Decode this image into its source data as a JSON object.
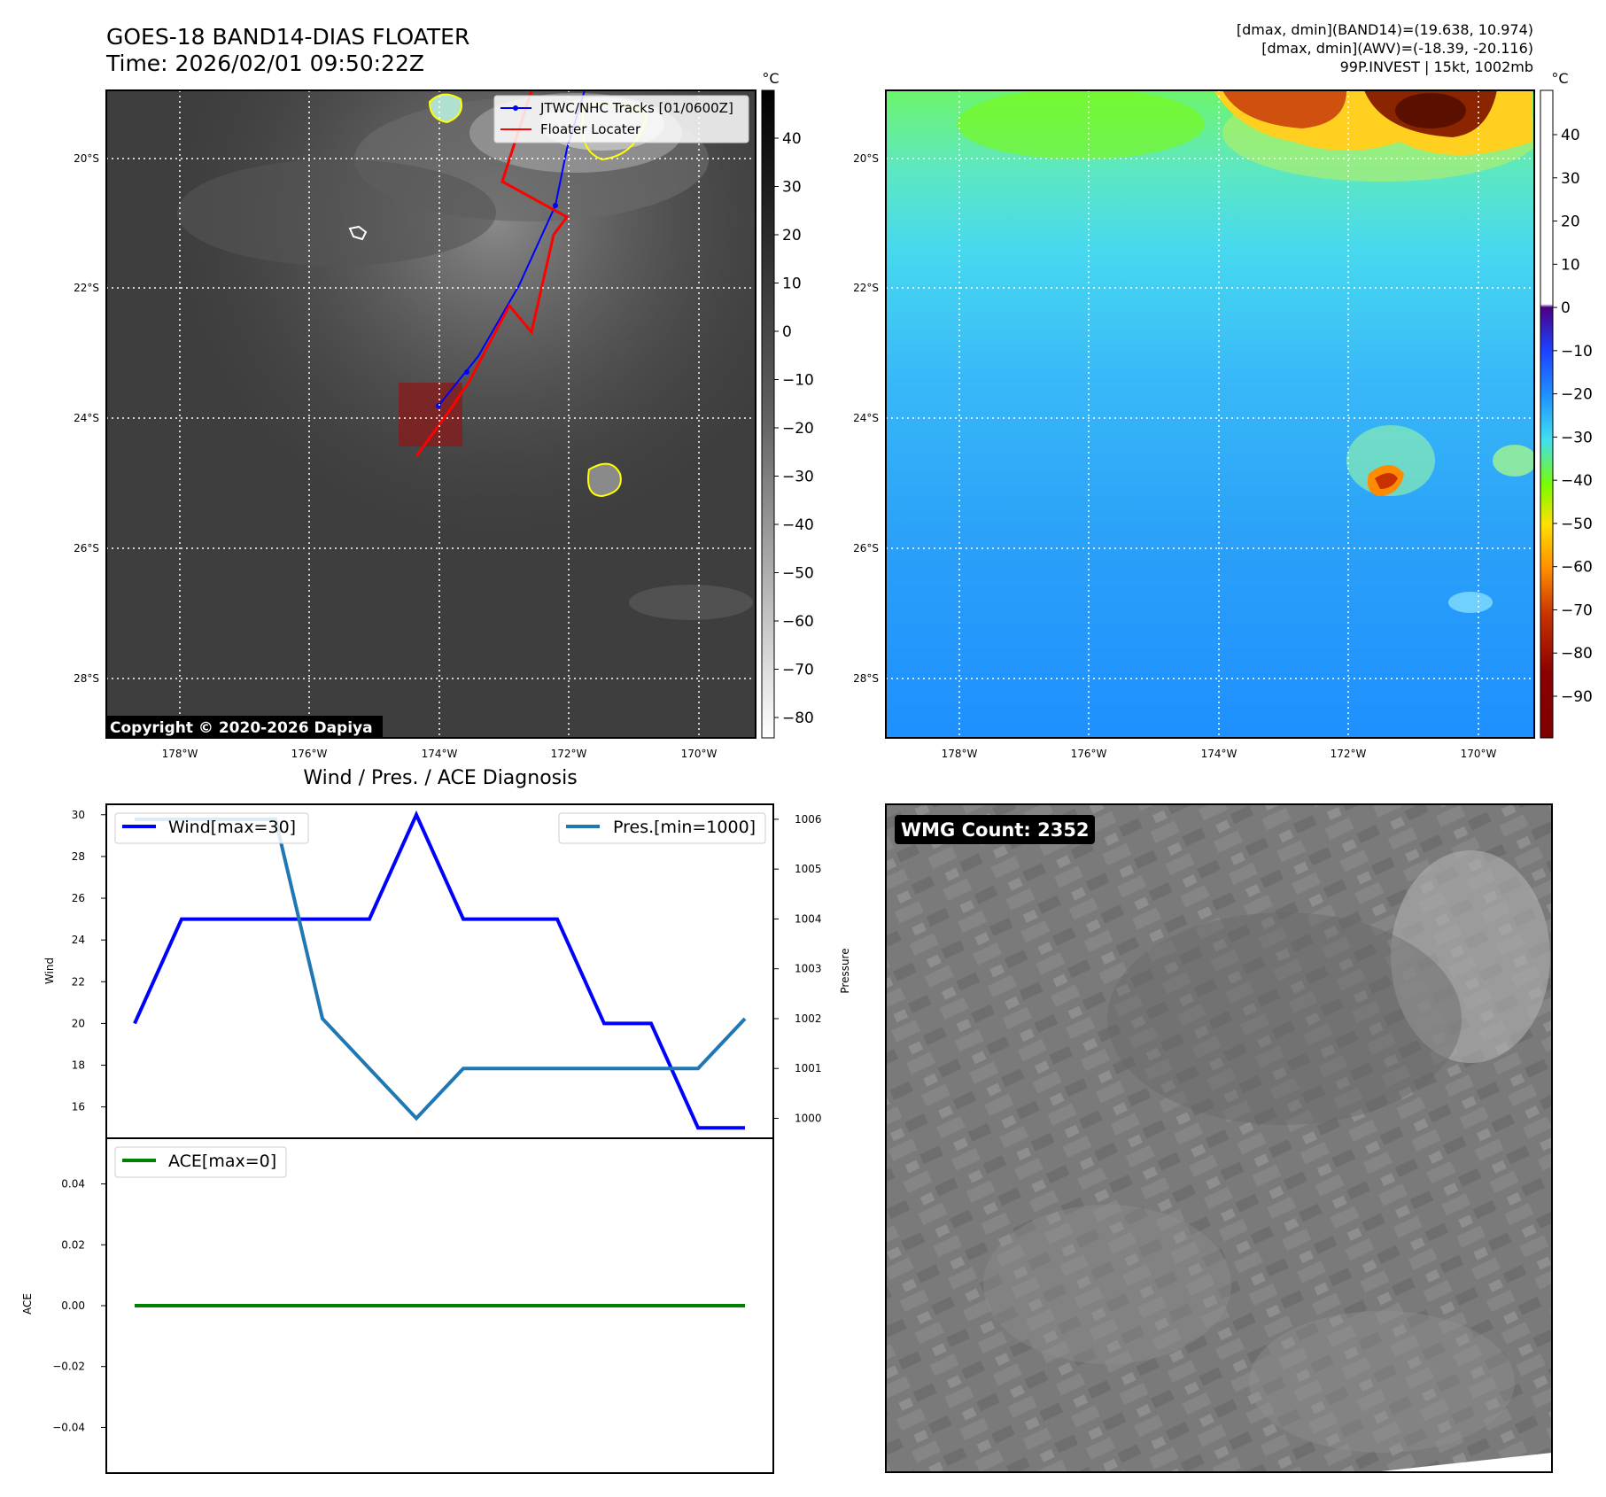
{
  "header": {
    "title_line1": "GOES-18 BAND14-DIAS FLOATER",
    "title_line2": "Time: 2026/02/01 09:50:22Z",
    "info_line1": "[dmax, dmin](BAND14)=(19.638, 10.974)",
    "info_line2": "[dmax, dmin](AWV)=(-18.39, -20.116)",
    "info_line3": "99P.INVEST | 15kt, 1002mb"
  },
  "maps": {
    "lat_labels": [
      "20°S",
      "22°S",
      "24°S",
      "26°S",
      "28°S"
    ],
    "lon_labels": [
      "178°W",
      "176°W",
      "174°W",
      "172°W",
      "170°W"
    ],
    "copyright": "Copyright © 2020-2026 Dapiya",
    "legend_tracks": "JTWC/NHC Tracks [01/0600Z]",
    "legend_floater": "Floater Locater",
    "ir_colorbar": {
      "unit": "°C",
      "ticks": [
        "40",
        "30",
        "20",
        "10",
        "0",
        "−10",
        "−20",
        "−30",
        "−40",
        "−50",
        "−60",
        "−70",
        "−80"
      ]
    },
    "wv_colorbar": {
      "unit": "°C",
      "ticks": [
        "40",
        "30",
        "20",
        "10",
        "0",
        "−10",
        "−20",
        "−30",
        "−40",
        "−50",
        "−60",
        "−70",
        "−80",
        "−90"
      ]
    },
    "colors": {
      "track": "#0000ff",
      "floater": "#ff0000",
      "floater_box": "#8b1a1a",
      "coast": "#ffffff",
      "wv_moist": "#1e90ff",
      "wv_dry_cyan": "#40e0f0",
      "wv_green": "#7cfc00",
      "wv_cold": "#8b2500"
    }
  },
  "diagnosis": {
    "title": "Wind / Pres. / ACE Diagnosis",
    "wmg_label": "WMG Count: 2352"
  },
  "chart_data": [
    {
      "type": "line",
      "title": "Wind / Pres. / ACE Diagnosis",
      "ylabel": "Wind",
      "y2label": "Pressure",
      "ylim": [
        14.5,
        30.5
      ],
      "y2lim": [
        999.6,
        1006.3
      ],
      "y_ticks": [
        "16",
        "18",
        "20",
        "22",
        "24",
        "26",
        "28",
        "30"
      ],
      "y2_ticks": [
        "1000",
        "1001",
        "1002",
        "1003",
        "1004",
        "1005",
        "1006"
      ],
      "x": [
        0,
        1,
        2,
        3,
        4,
        5,
        6,
        7,
        8,
        9,
        10,
        11,
        12,
        13
      ],
      "series": [
        {
          "name": "Wind[max=30]",
          "axis": "left",
          "color": "#0000ff",
          "values": [
            20,
            25,
            25,
            25,
            25,
            25,
            30,
            25,
            25,
            25,
            20,
            20,
            15,
            15
          ]
        },
        {
          "name": "Pres.[min=1000]",
          "axis": "right",
          "color": "#1f77b4",
          "values": [
            1006,
            1006,
            1006,
            1006,
            1002,
            1001,
            1000,
            1001,
            1001,
            1001,
            1001,
            1001,
            1001,
            1002
          ]
        }
      ],
      "grid": false,
      "legend": [
        "top-left",
        "top-right"
      ]
    },
    {
      "type": "line",
      "ylabel": "ACE",
      "ylim": [
        -0.055,
        0.055
      ],
      "y_ticks": [
        "0.04",
        "0.02",
        "0.00",
        "−0.02",
        "−0.04"
      ],
      "y_tick_values": [
        0.04,
        0.02,
        0.0,
        -0.02,
        -0.04
      ],
      "x": [
        0,
        1,
        2,
        3,
        4,
        5,
        6,
        7,
        8,
        9,
        10,
        11,
        12,
        13
      ],
      "series": [
        {
          "name": "ACE[max=0]",
          "color": "#008000",
          "values": [
            0,
            0,
            0,
            0,
            0,
            0,
            0,
            0,
            0,
            0,
            0,
            0,
            0,
            0
          ]
        }
      ],
      "grid": false,
      "legend": "top-left"
    }
  ]
}
